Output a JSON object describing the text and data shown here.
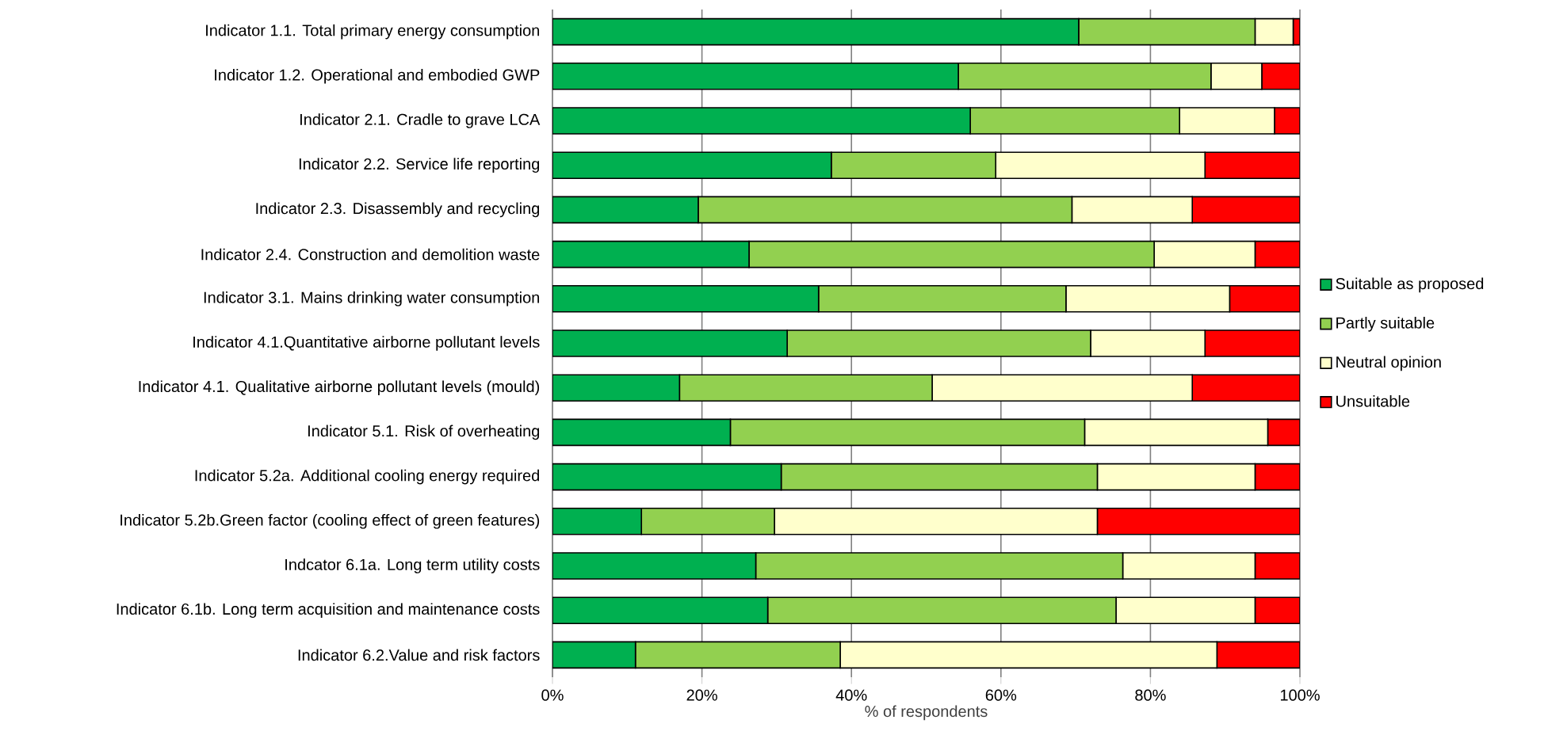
{
  "chart_data": {
    "type": "bar",
    "orientation": "horizontal",
    "stacked": true,
    "xlabel": "% of respondents",
    "categories": [
      "Indicator 1.1. Total primary energy consumption",
      "Indicator 1.2. Operational and embodied GWP",
      "Indicator 2.1. Cradle to grave LCA",
      "Indicator 2.2. Service life reporting",
      "Indicator 2.3. Disassembly and recycling",
      "Indicator 2.4. Construction and demolition waste",
      "Indicator 3.1. Mains drinking water consumption",
      "Indicator 4.1.Quantitative airborne pollutant levels",
      "Indicator 4.1. Qualitative airborne pollutant levels (mould)",
      "Indicator 5.1. Risk of overheating",
      "Indicator 5.2a. Additional cooling energy required",
      "Indicator 5.2b.Green factor (cooling effect of green features)",
      "Indcator 6.1a. Long term utility costs",
      "Indicator 6.1b. Long term acquisition and maintenance costs",
      "Indicator 6.2.Value and risk factors"
    ],
    "series": [
      {
        "name": "Suitable as proposed",
        "color": "#00b050",
        "values": [
          70.4,
          54.3,
          55.9,
          37.3,
          19.5,
          26.3,
          35.6,
          31.4,
          17.0,
          23.8,
          30.6,
          11.9,
          27.2,
          28.8,
          11.1
        ]
      },
      {
        "name": "Partly suitable",
        "color": "#92d050",
        "values": [
          23.6,
          33.8,
          28.0,
          22.0,
          50.0,
          54.2,
          33.1,
          40.6,
          33.8,
          47.4,
          42.3,
          17.8,
          49.1,
          46.6,
          27.4
        ]
      },
      {
        "name": "Neutral opinion",
        "color": "#ffffcc",
        "values": [
          5.1,
          6.8,
          12.7,
          28.0,
          16.1,
          13.5,
          21.9,
          15.3,
          34.8,
          24.5,
          21.1,
          43.2,
          17.7,
          18.6,
          50.4
        ]
      },
      {
        "name": "Unsuitable",
        "color": "#ff0000",
        "values": [
          0.9,
          5.1,
          3.4,
          12.7,
          14.4,
          6.0,
          9.4,
          12.7,
          14.4,
          4.3,
          6.0,
          27.1,
          6.0,
          6.0,
          11.1
        ]
      }
    ],
    "xlim": [
      0,
      100
    ],
    "xticks": [
      {
        "value": 0,
        "label": "0%"
      },
      {
        "value": 20,
        "label": "20%"
      },
      {
        "value": 40,
        "label": "40%"
      },
      {
        "value": 60,
        "label": "60%"
      },
      {
        "value": 80,
        "label": "80%"
      },
      {
        "value": 100,
        "label": "100%"
      }
    ],
    "grid": "x",
    "legend": "right"
  }
}
